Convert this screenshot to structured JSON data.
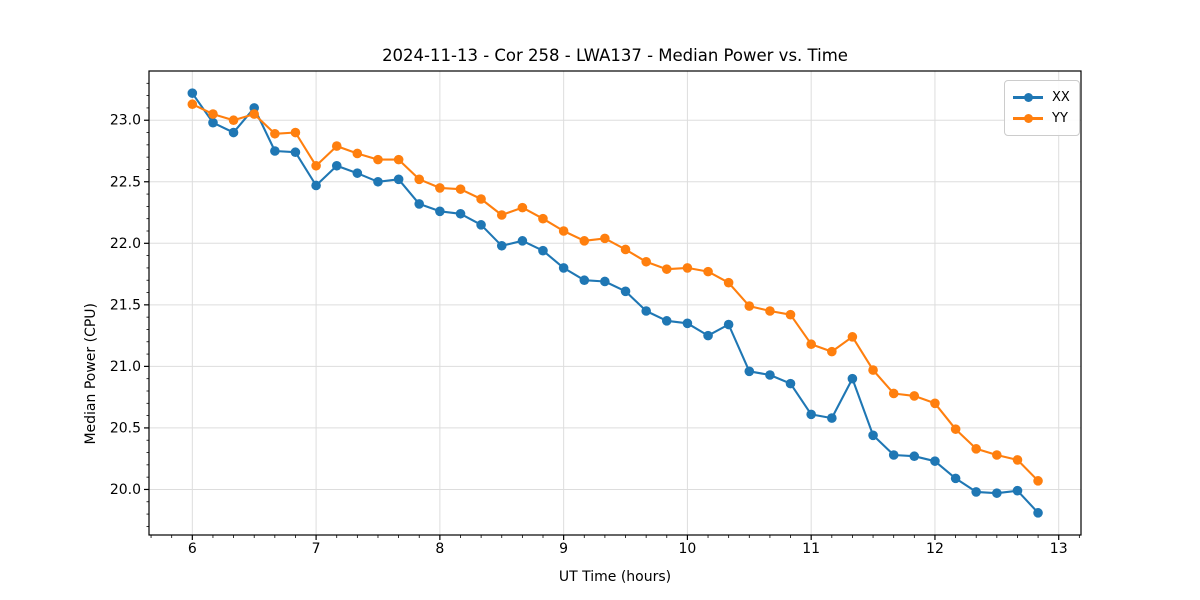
{
  "chart_data": {
    "type": "line",
    "title": "2024-11-13 - Cor 258 - LWA137 - Median Power vs. Time",
    "xlabel": "UT Time (hours)",
    "ylabel": "Median Power (CPU)",
    "xlim": [
      5.65,
      13.18
    ],
    "ylim": [
      19.63,
      23.4
    ],
    "grid": true,
    "grid_which": "major",
    "legend_position": "upper right",
    "xticks": [
      {
        "value": 6,
        "label": "6"
      },
      {
        "value": 7,
        "label": "7"
      },
      {
        "value": 8,
        "label": "8"
      },
      {
        "value": 9,
        "label": "9"
      },
      {
        "value": 10,
        "label": "10"
      },
      {
        "value": 11,
        "label": "11"
      },
      {
        "value": 12,
        "label": "12"
      },
      {
        "value": 13,
        "label": "13"
      }
    ],
    "yticks": [
      {
        "value": 20.0,
        "label": "20.0"
      },
      {
        "value": 20.5,
        "label": "20.5"
      },
      {
        "value": 21.0,
        "label": "21.0"
      },
      {
        "value": 21.5,
        "label": "21.5"
      },
      {
        "value": 22.0,
        "label": "22.0"
      },
      {
        "value": 22.5,
        "label": "22.5"
      },
      {
        "value": 23.0,
        "label": "23.0"
      }
    ],
    "minor_tick_step_x": 0.1666667,
    "minor_tick_step_y": 0.1,
    "x": [
      6.0,
      6.167,
      6.333,
      6.5,
      6.667,
      6.833,
      7.0,
      7.167,
      7.333,
      7.5,
      7.667,
      7.833,
      8.0,
      8.167,
      8.333,
      8.5,
      8.667,
      8.833,
      9.0,
      9.167,
      9.333,
      9.5,
      9.667,
      9.833,
      10.0,
      10.167,
      10.333,
      10.5,
      10.667,
      10.833,
      11.0,
      11.167,
      11.333,
      11.5,
      11.667,
      11.833,
      12.0,
      12.167,
      12.333,
      12.5,
      12.667,
      12.833
    ],
    "series": [
      {
        "name": "XX",
        "color": "#1f77b4",
        "values": [
          23.22,
          22.98,
          22.9,
          23.1,
          22.75,
          22.74,
          22.47,
          22.63,
          22.57,
          22.5,
          22.52,
          22.32,
          22.26,
          22.24,
          22.15,
          21.98,
          22.02,
          21.94,
          21.8,
          21.7,
          21.69,
          21.61,
          21.45,
          21.37,
          21.35,
          21.25,
          21.34,
          20.96,
          20.93,
          20.86,
          20.61,
          20.58,
          20.9,
          20.44,
          20.28,
          20.27,
          20.23,
          20.09,
          19.98,
          19.97,
          19.99,
          19.81
        ]
      },
      {
        "name": "YY",
        "color": "#ff7f0e",
        "values": [
          23.13,
          23.05,
          23.0,
          23.05,
          22.89,
          22.9,
          22.63,
          22.79,
          22.73,
          22.68,
          22.68,
          22.52,
          22.45,
          22.44,
          22.36,
          22.23,
          22.29,
          22.2,
          22.1,
          22.02,
          22.04,
          21.95,
          21.85,
          21.79,
          21.8,
          21.77,
          21.68,
          21.49,
          21.45,
          21.42,
          21.18,
          21.12,
          21.24,
          20.97,
          20.78,
          20.76,
          20.7,
          20.49,
          20.33,
          20.28,
          20.24,
          20.07
        ]
      }
    ],
    "style": {
      "grid_color": "#dddddd",
      "spine_color": "#000000",
      "tick_color": "#000000",
      "background": "#ffffff",
      "marker_radius": 4.8,
      "line_width": 2.1
    }
  }
}
